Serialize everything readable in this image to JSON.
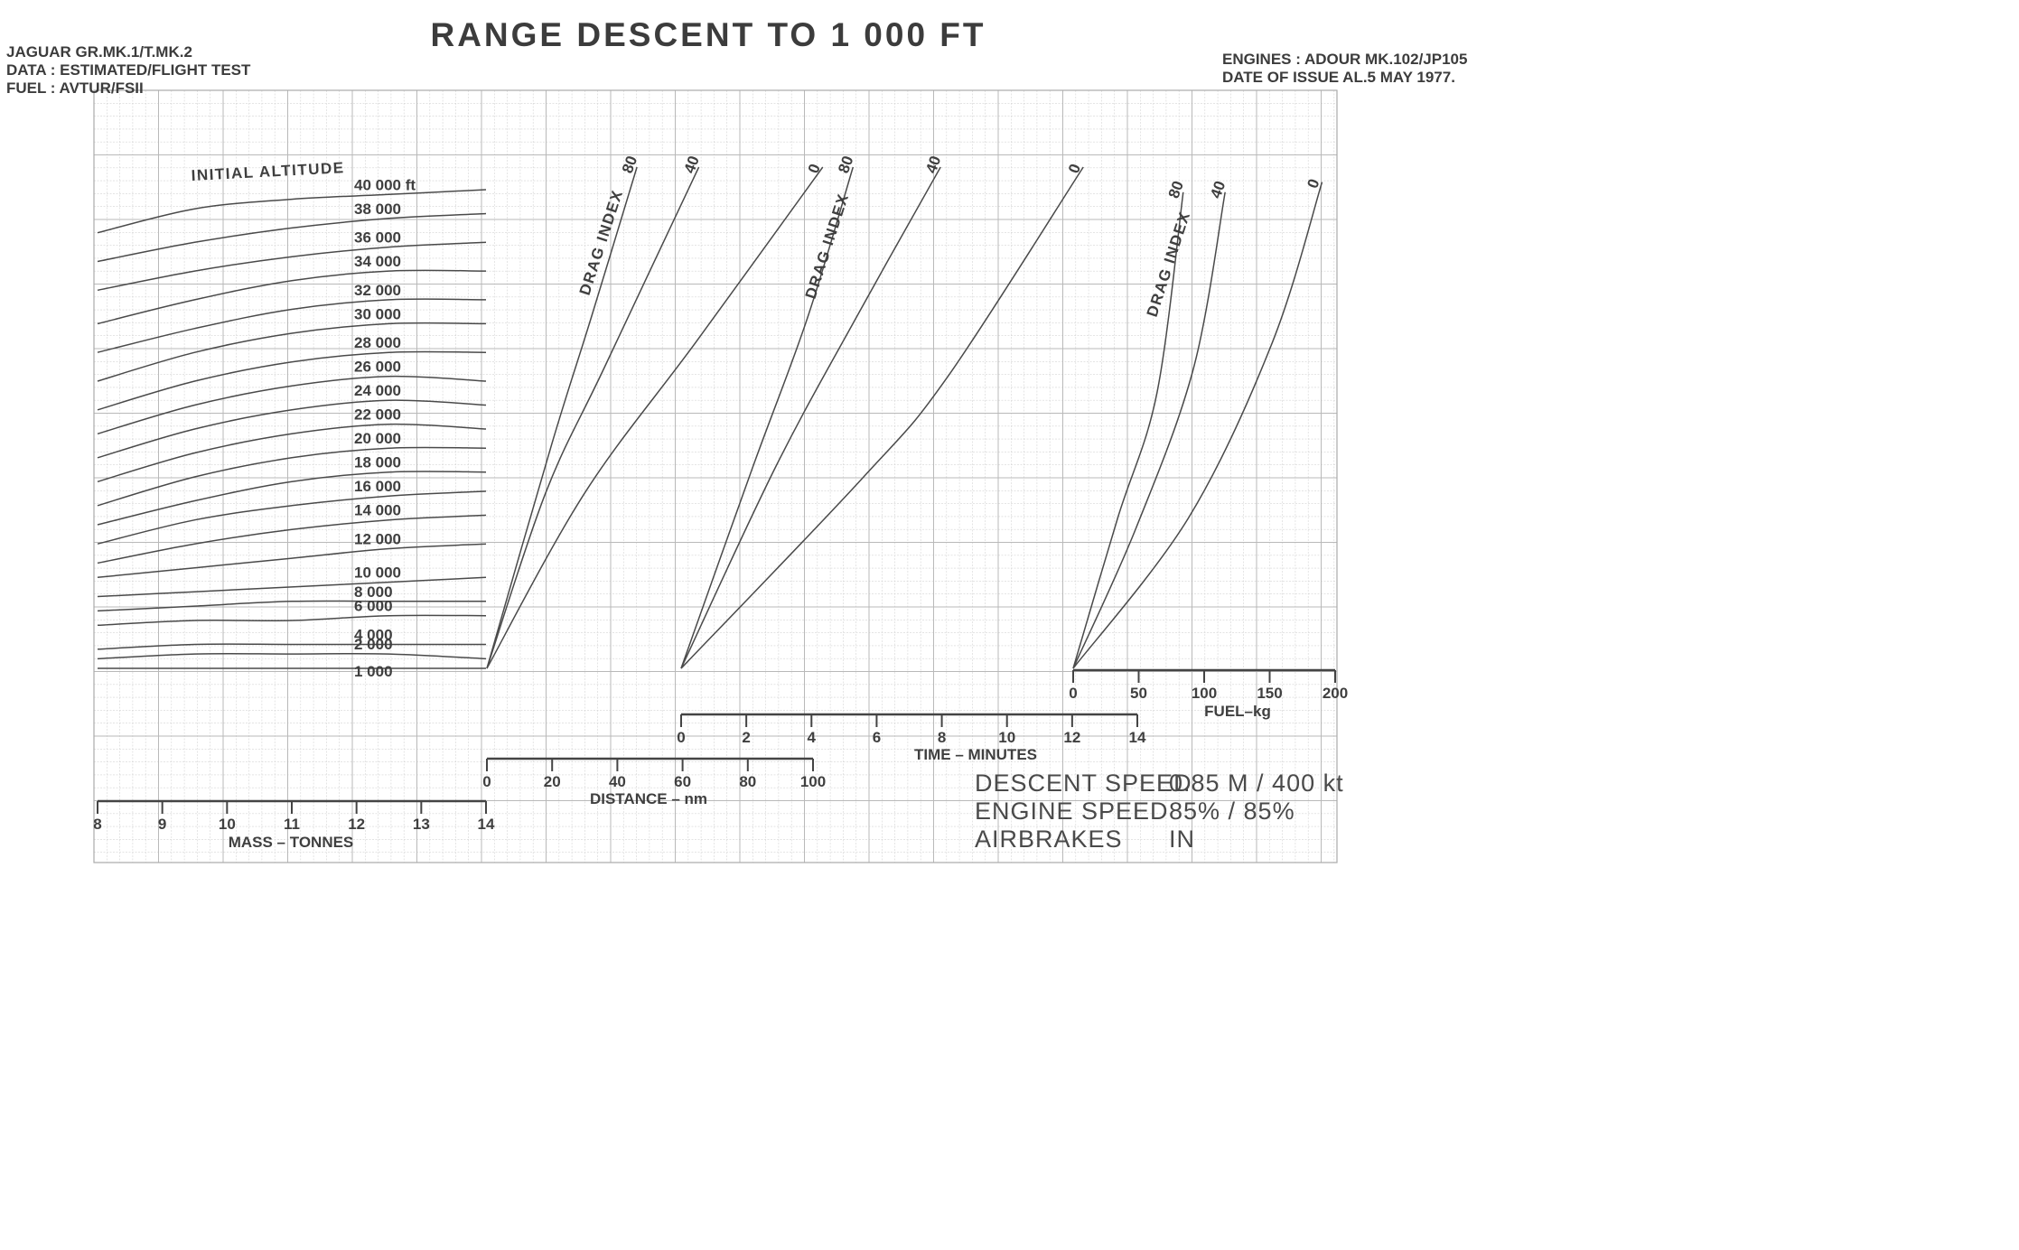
{
  "title": "RANGE DESCENT TO 1 000 FT",
  "header_left": [
    "JAGUAR GR.MK.1/T.MK.2",
    "DATA : ESTIMATED/FLIGHT TEST",
    "FUEL : AVTUR/FSII"
  ],
  "header_right": [
    "ENGINES : ADOUR MK.102/JP105",
    "DATE OF ISSUE AL.5 MAY 1977."
  ],
  "conditions": {
    "labels": [
      "DESCENT SPEED",
      "ENGINE SPEED",
      "AIRBRAKES"
    ],
    "values": [
      "0.85 M / 400 kt",
      "85% / 85%",
      "IN"
    ]
  },
  "chart_data": [
    {
      "type": "line",
      "panel": "mass",
      "xlabel": "MASS – TONNES",
      "xlim": [
        8,
        14
      ],
      "x_ticks": [
        "8",
        "9",
        "10",
        "11",
        "12",
        "13",
        "14"
      ],
      "curve_title": "INITIAL ALTITUDE",
      "series": [
        {
          "name": "40 000 ft",
          "values": [
            0.91,
            0.96,
            0.98,
            0.99,
            1.0
          ]
        },
        {
          "name": "38 000",
          "values": [
            0.85,
            0.89,
            0.92,
            0.94,
            0.95
          ]
        },
        {
          "name": "36 000",
          "values": [
            0.79,
            0.83,
            0.86,
            0.88,
            0.89
          ]
        },
        {
          "name": "34 000",
          "values": [
            0.72,
            0.77,
            0.81,
            0.83,
            0.83
          ]
        },
        {
          "name": "32 000",
          "values": [
            0.66,
            0.71,
            0.75,
            0.77,
            0.77
          ]
        },
        {
          "name": "30 000",
          "values": [
            0.6,
            0.66,
            0.7,
            0.72,
            0.72
          ]
        },
        {
          "name": "28 000",
          "values": [
            0.54,
            0.6,
            0.64,
            0.66,
            0.66
          ]
        },
        {
          "name": "26 000",
          "values": [
            0.49,
            0.55,
            0.59,
            0.61,
            0.6
          ]
        },
        {
          "name": "24 000",
          "values": [
            0.44,
            0.5,
            0.54,
            0.56,
            0.55
          ]
        },
        {
          "name": "22 000",
          "values": [
            0.39,
            0.45,
            0.49,
            0.51,
            0.5
          ]
        },
        {
          "name": "20 000",
          "values": [
            0.34,
            0.4,
            0.44,
            0.46,
            0.46
          ]
        },
        {
          "name": "18 000",
          "values": [
            0.3,
            0.35,
            0.39,
            0.41,
            0.41
          ]
        },
        {
          "name": "16 000",
          "values": [
            0.26,
            0.31,
            0.34,
            0.36,
            0.37
          ]
        },
        {
          "name": "14 000",
          "values": [
            0.22,
            0.26,
            0.29,
            0.31,
            0.32
          ]
        },
        {
          "name": "12 000",
          "values": [
            0.19,
            0.21,
            0.23,
            0.25,
            0.26
          ]
        },
        {
          "name": "10 000",
          "values": [
            0.15,
            0.16,
            0.17,
            0.18,
            0.19
          ]
        },
        {
          "name": "8 000",
          "values": [
            0.12,
            0.13,
            0.14,
            0.14,
            0.14
          ]
        },
        {
          "name": "6 000",
          "values": [
            0.09,
            0.1,
            0.1,
            0.11,
            0.11
          ]
        },
        {
          "name": "4 000",
          "values": [
            0.04,
            0.05,
            0.05,
            0.05,
            0.05
          ]
        },
        {
          "name": "2 000",
          "values": [
            0.02,
            0.03,
            0.03,
            0.03,
            0.02
          ]
        },
        {
          "name": "1 000",
          "values": [
            0.0,
            0.0,
            0.0,
            0.0,
            0.0
          ]
        }
      ]
    },
    {
      "type": "line",
      "panel": "distance",
      "xlabel": "DISTANCE – nm",
      "xlim": [
        0,
        100
      ],
      "x_ticks": [
        "0",
        "20",
        "40",
        "60",
        "80",
        "100"
      ],
      "curve_title": "DRAG INDEX",
      "series": [
        {
          "name": "80",
          "x": [
            0,
            20,
            32,
            46
          ],
          "y": [
            0,
            0.45,
            0.7,
            1.0
          ]
        },
        {
          "name": "40",
          "x": [
            0,
            18,
            36,
            65
          ],
          "y": [
            0,
            0.35,
            0.6,
            1.0
          ]
        },
        {
          "name": "0",
          "x": [
            0,
            30,
            64,
            103
          ],
          "y": [
            0,
            0.35,
            0.65,
            1.0
          ]
        }
      ]
    },
    {
      "type": "line",
      "panel": "time",
      "xlabel": "TIME – MINUTES",
      "xlim": [
        0,
        14
      ],
      "x_ticks": [
        "0",
        "2",
        "4",
        "6",
        "8",
        "10",
        "12",
        "14"
      ],
      "curve_title": "DRAG INDEX",
      "series": [
        {
          "name": "80",
          "x": [
            0,
            2.2,
            3.9,
            5.3
          ],
          "y": [
            0,
            0.4,
            0.7,
            1.0
          ]
        },
        {
          "name": "40",
          "x": [
            0,
            2.9,
            5.4,
            8.0
          ],
          "y": [
            0,
            0.4,
            0.7,
            1.0
          ]
        },
        {
          "name": "0",
          "x": [
            0,
            5.6,
            8.2,
            12.4
          ],
          "y": [
            0,
            0.38,
            0.58,
            1.0
          ]
        }
      ]
    },
    {
      "type": "line",
      "panel": "fuel",
      "xlabel": "FUEL–kg",
      "xlim": [
        0,
        200
      ],
      "x_ticks": [
        "0",
        "50",
        "100",
        "150",
        "200"
      ],
      "curve_title": "DRAG INDEX",
      "series": [
        {
          "name": "80",
          "x": [
            0,
            34,
            64,
            84
          ],
          "y": [
            0,
            0.3,
            0.55,
            0.95
          ]
        },
        {
          "name": "40",
          "x": [
            0,
            48,
            92,
            116
          ],
          "y": [
            0,
            0.28,
            0.6,
            0.95
          ]
        },
        {
          "name": "0",
          "x": [
            0,
            88,
            152,
            190
          ],
          "y": [
            0,
            0.3,
            0.65,
            0.97
          ]
        }
      ]
    }
  ]
}
